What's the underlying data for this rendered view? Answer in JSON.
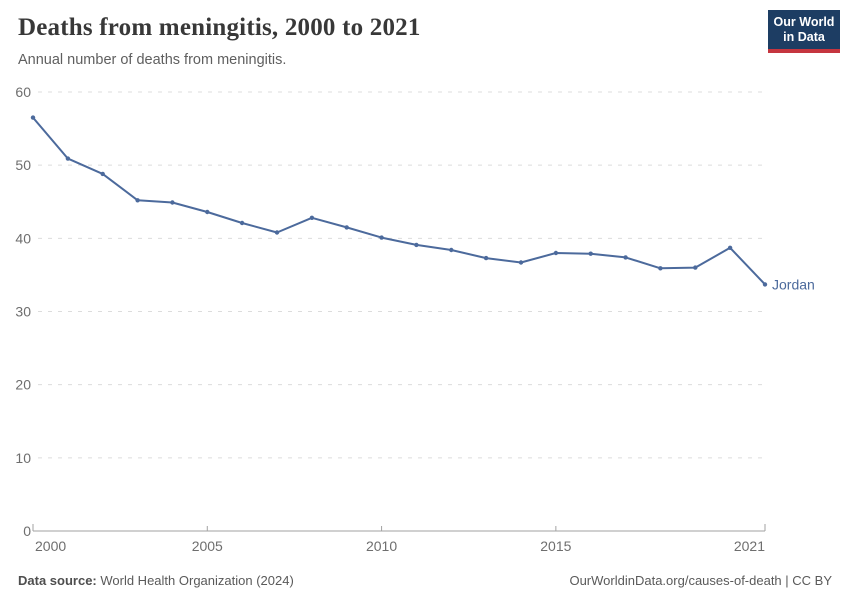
{
  "header": {
    "title": "Deaths from meningitis, 2000 to 2021",
    "subtitle": "Annual number of deaths from meningitis.",
    "logo": {
      "line1": "Our World",
      "line2": "in Data"
    }
  },
  "chart_data": {
    "type": "line",
    "title": "Deaths from meningitis, 2000 to 2021",
    "xlabel": "",
    "ylabel": "",
    "xlim": [
      2000,
      2021
    ],
    "ylim": [
      0,
      60
    ],
    "x_ticks": [
      2000,
      2005,
      2010,
      2015,
      2021
    ],
    "y_ticks": [
      0,
      10,
      20,
      30,
      40,
      50,
      60
    ],
    "grid": "horizontal-dashed",
    "legend_position": "end-of-line-label",
    "series": [
      {
        "name": "Jordan",
        "color": "#4C6A9C",
        "x": [
          2000,
          2001,
          2002,
          2003,
          2004,
          2005,
          2006,
          2007,
          2008,
          2009,
          2010,
          2011,
          2012,
          2013,
          2014,
          2015,
          2016,
          2017,
          2018,
          2019,
          2020,
          2021
        ],
        "values": [
          56.5,
          50.9,
          48.8,
          45.2,
          44.9,
          43.6,
          42.1,
          40.8,
          42.8,
          41.5,
          40.1,
          39.1,
          38.4,
          37.3,
          36.7,
          38.0,
          37.9,
          37.4,
          35.9,
          36.0,
          38.7,
          33.7
        ]
      }
    ]
  },
  "footer": {
    "source_label": "Data source:",
    "source_text": " World Health Organization (2024)",
    "right_text": "OurWorldinData.org/causes-of-death | CC BY"
  },
  "colors": {
    "line": "#4C6A9C",
    "gridline": "#dcdcdc",
    "axis": "#a2a2a2",
    "tick_label": "#6e6e6e",
    "logo_bg": "#1d3d63",
    "logo_stripe": "#c5353f",
    "title_text": "#383838",
    "subtitle_text": "#5f5f5f"
  }
}
